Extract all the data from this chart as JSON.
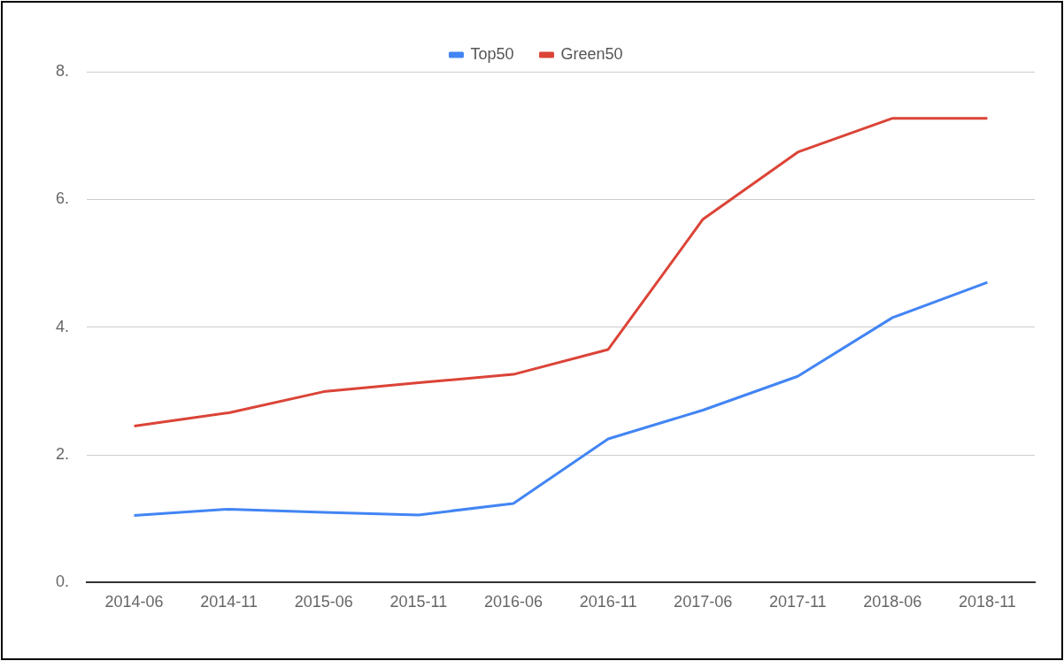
{
  "chart_data": {
    "type": "line",
    "categories": [
      "2014-06",
      "2014-11",
      "2015-06",
      "2015-11",
      "2016-06",
      "2016-11",
      "2017-06",
      "2017-11",
      "2018-06",
      "2018-11"
    ],
    "series": [
      {
        "name": "Top50",
        "color": "#4285f4",
        "values": [
          1.05,
          1.15,
          1.1,
          1.06,
          1.24,
          2.25,
          2.7,
          3.23,
          4.15,
          4.7
        ]
      },
      {
        "name": "Green50",
        "color": "#db4437",
        "values": [
          2.45,
          2.66,
          2.99,
          3.13,
          3.26,
          3.65,
          5.69,
          6.74,
          7.27,
          7.27
        ]
      }
    ],
    "ylim": [
      0,
      8
    ],
    "yticks": [
      {
        "value": 0,
        "label": "0."
      },
      {
        "value": 2,
        "label": "2."
      },
      {
        "value": 4,
        "label": "4."
      },
      {
        "value": 6,
        "label": "6."
      },
      {
        "value": 8,
        "label": "8."
      }
    ],
    "grid": "y",
    "legend": "top",
    "marker": "none",
    "line_style": "solid"
  }
}
